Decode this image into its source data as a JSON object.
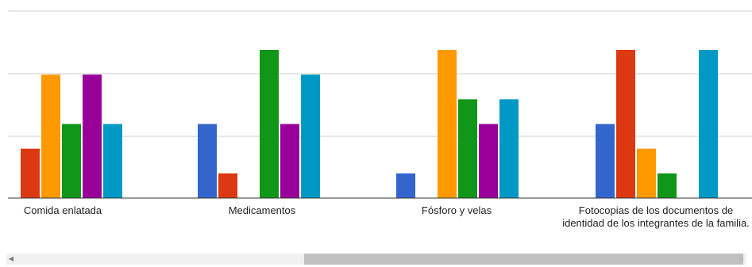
{
  "chart_data": {
    "type": "bar",
    "categories": [
      "Comida enlatada",
      "Medicamentos",
      "Fósforo y velas",
      "Fotocopias de los documentos de identidad de los integrantes de la familia."
    ],
    "ylim": [
      0,
      6
    ],
    "grid": true,
    "series": [
      {
        "color": "#3366cc",
        "values": [
          0,
          3,
          1,
          3
        ]
      },
      {
        "color": "#dc3912",
        "values": [
          2,
          1,
          0,
          6
        ]
      },
      {
        "color": "#ff9900",
        "values": [
          5,
          0,
          6,
          2
        ]
      },
      {
        "color": "#109618",
        "values": [
          3,
          6,
          4,
          1
        ]
      },
      {
        "color": "#990099",
        "values": [
          5,
          3,
          3,
          0
        ]
      },
      {
        "color": "#0099c6",
        "values": [
          3,
          5,
          4,
          6
        ]
      }
    ]
  },
  "scrollbar": {
    "left_arrow_icon": "chevron-left-icon",
    "right_arrow_icon": "chevron-right-icon"
  }
}
